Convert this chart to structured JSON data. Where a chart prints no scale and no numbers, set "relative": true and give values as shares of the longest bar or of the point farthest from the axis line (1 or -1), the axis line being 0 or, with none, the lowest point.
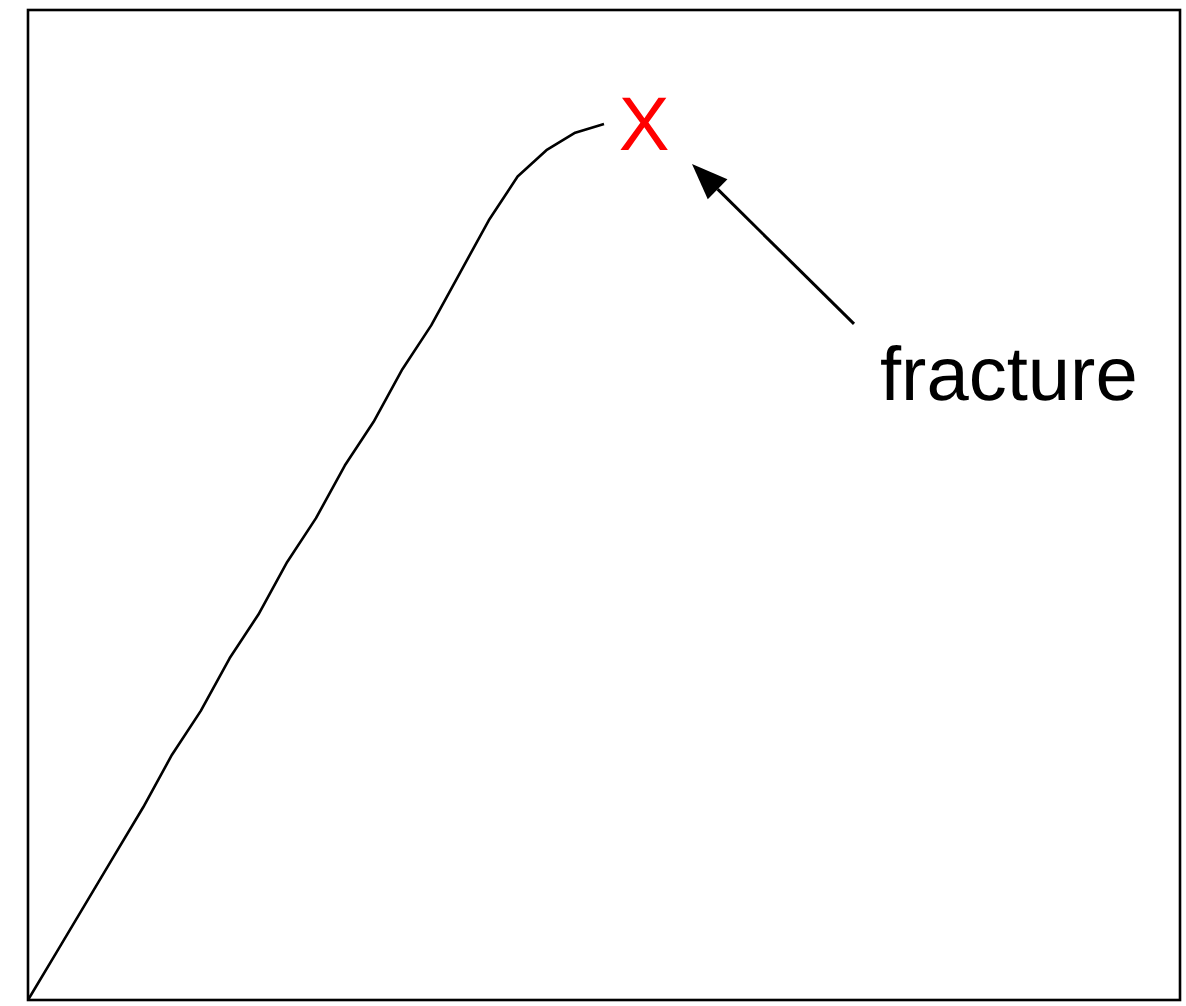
{
  "chart_data": {
    "type": "line",
    "relative": true,
    "grid": false,
    "marker": "none",
    "line_style": "solid",
    "categories": [
      null,
      null,
      null,
      null,
      null,
      null,
      null,
      null,
      null,
      null,
      null,
      null,
      null,
      null,
      null,
      null,
      null,
      null,
      null,
      null,
      null
    ],
    "series": [
      {
        "color": "#000000",
        "values": [
          0,
          0.055,
          0.11,
          0.165,
          0.22,
          0.28,
          0.33,
          0.39,
          0.44,
          0.5,
          0.55,
          0.61,
          0.66,
          0.72,
          0.77,
          0.83,
          0.89,
          0.94,
          0.97,
          0.99,
          1
        ]
      }
    ],
    "annotations": [
      "X",
      "fracture"
    ]
  }
}
